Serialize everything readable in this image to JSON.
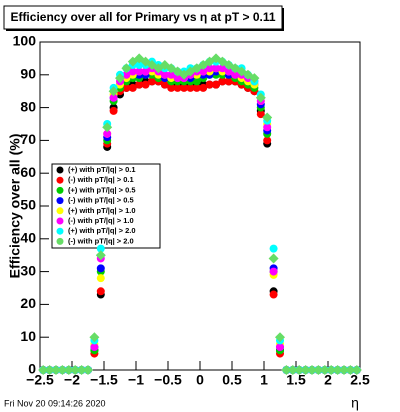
{
  "chart_data": {
    "type": "scatter",
    "title": "Efficiency over all for Primary vs   η at pT > 0.11",
    "y_label": "Efficiency over all (%)",
    "x_label": "η",
    "footer": "Fri Nov 20 09:14:26 2020",
    "x": [
      -2.45,
      -2.35,
      -2.25,
      -2.15,
      -2.05,
      -1.95,
      -1.85,
      -1.75,
      -1.65,
      -1.55,
      -1.45,
      -1.35,
      -1.25,
      -1.15,
      -1.05,
      -0.95,
      -0.85,
      -0.75,
      -0.65,
      -0.55,
      -0.45,
      -0.35,
      -0.25,
      -0.15,
      -0.05,
      0.05,
      0.15,
      0.25,
      0.35,
      0.45,
      0.55,
      0.65,
      0.75,
      0.85,
      0.95,
      1.05,
      1.15,
      1.25,
      1.35,
      1.45,
      1.55,
      1.65,
      1.75,
      1.85,
      1.95,
      2.05,
      2.15,
      2.25,
      2.35,
      2.45
    ],
    "series": [
      {
        "name": "(+) with pT/|q| > 0.1",
        "color": "#000000",
        "values": [
          0,
          0,
          0,
          0,
          0,
          0,
          0,
          0,
          6,
          23,
          68,
          80,
          84,
          86,
          87,
          87,
          88,
          88,
          88,
          87,
          87,
          87,
          87,
          87,
          87,
          87,
          87,
          87,
          88,
          88,
          88,
          87,
          86,
          85,
          79,
          69,
          24,
          6,
          0,
          0,
          0,
          0,
          0,
          0,
          0,
          0,
          0,
          0,
          0,
          0
        ]
      },
      {
        "name": "(-) with pT/|q| > 0.1",
        "color": "#ff0000",
        "values": [
          0,
          0,
          0,
          0,
          0,
          0,
          0,
          0,
          5,
          24,
          69,
          79,
          85,
          86,
          86,
          87,
          87,
          88,
          88,
          87,
          86,
          86,
          86,
          86,
          86,
          86,
          87,
          87,
          88,
          88,
          88,
          87,
          86,
          85,
          78,
          70,
          23,
          5,
          0,
          0,
          0,
          0,
          0,
          0,
          0,
          0,
          0,
          0,
          0,
          0
        ]
      },
      {
        "name": "(+) with pT/|q| > 0.5",
        "color": "#00cc00",
        "values": [
          0,
          0,
          0,
          0,
          0,
          0,
          0,
          0,
          6,
          30,
          70,
          82,
          86,
          88,
          89,
          89,
          90,
          90,
          89,
          89,
          88,
          88,
          88,
          88,
          88,
          89,
          90,
          90,
          90,
          90,
          89,
          88,
          87,
          86,
          80,
          72,
          30,
          6,
          0,
          0,
          0,
          0,
          0,
          0,
          0,
          0,
          0,
          0,
          0,
          0
        ]
      },
      {
        "name": "(-) with pT/|q| > 0.5",
        "color": "#0000ff",
        "values": [
          0,
          0,
          0,
          0,
          0,
          0,
          0,
          0,
          7,
          31,
          71,
          83,
          87,
          89,
          90,
          90,
          90,
          91,
          90,
          89,
          89,
          89,
          89,
          89,
          90,
          90,
          90,
          91,
          91,
          90,
          90,
          89,
          88,
          87,
          81,
          73,
          31,
          7,
          0,
          0,
          0,
          0,
          0,
          0,
          0,
          0,
          0,
          0,
          0,
          0
        ]
      },
      {
        "name": "(+) with pT/|q| > 1.0",
        "color": "#ffff00",
        "values": [
          0,
          0,
          0,
          0,
          0,
          0,
          0,
          0,
          8,
          28,
          72,
          84,
          87,
          89,
          90,
          91,
          91,
          91,
          90,
          90,
          89,
          89,
          89,
          90,
          90,
          91,
          91,
          92,
          91,
          91,
          90,
          89,
          88,
          87,
          82,
          75,
          29,
          8,
          0,
          0,
          0,
          0,
          0,
          0,
          0,
          0,
          0,
          0,
          0,
          0
        ]
      },
      {
        "name": "(-) with pT/|q| > 1.0",
        "color": "#ff00ff",
        "values": [
          0,
          0,
          0,
          0,
          0,
          0,
          0,
          0,
          7,
          34,
          72,
          83,
          88,
          90,
          91,
          91,
          91,
          92,
          91,
          90,
          90,
          89,
          89,
          90,
          91,
          91,
          92,
          92,
          92,
          91,
          90,
          90,
          89,
          88,
          82,
          74,
          30,
          7,
          0,
          0,
          0,
          0,
          0,
          0,
          0,
          0,
          0,
          0,
          0,
          0
        ]
      },
      {
        "name": "(+) with pT/|q| > 2.0",
        "color": "#00ffff",
        "values": [
          0,
          0,
          0,
          0,
          0,
          0,
          0,
          0,
          9,
          37,
          75,
          86,
          90,
          92,
          93,
          93,
          93,
          94,
          93,
          92,
          92,
          91,
          91,
          92,
          92,
          93,
          94,
          94,
          94,
          93,
          92,
          92,
          90,
          88,
          84,
          76,
          37,
          9,
          0,
          0,
          0,
          0,
          0,
          0,
          0,
          0,
          0,
          0,
          0,
          0
        ]
      },
      {
        "name": "(-) with pT/|q| > 2.0",
        "color": "#66dd66",
        "values": [
          0,
          0,
          0,
          0,
          0,
          0,
          0,
          0,
          10,
          35,
          74,
          85,
          89,
          92,
          94,
          95,
          94,
          93,
          92,
          93,
          92,
          91,
          90,
          91,
          92,
          93,
          94,
          95,
          94,
          93,
          92,
          91,
          90,
          89,
          83,
          77,
          34,
          10,
          0,
          0,
          0,
          0,
          0,
          0,
          0,
          0,
          0,
          0,
          0,
          0
        ]
      }
    ],
    "xlim": [
      -2.5,
      2.5
    ],
    "xticks": [
      {
        "value": -2.5,
        "label": "−2.5"
      },
      {
        "value": -2,
        "label": "−2"
      },
      {
        "value": -1.5,
        "label": "−1.5"
      },
      {
        "value": -1,
        "label": "−1"
      },
      {
        "value": -0.5,
        "label": "−0.5"
      },
      0,
      0.5,
      1,
      1.5,
      2,
      2.5
    ],
    "ylim": [
      0,
      100
    ],
    "yticks": [
      0,
      10,
      20,
      30,
      40,
      50,
      60,
      70,
      80,
      90,
      100
    ],
    "legend": "left"
  }
}
